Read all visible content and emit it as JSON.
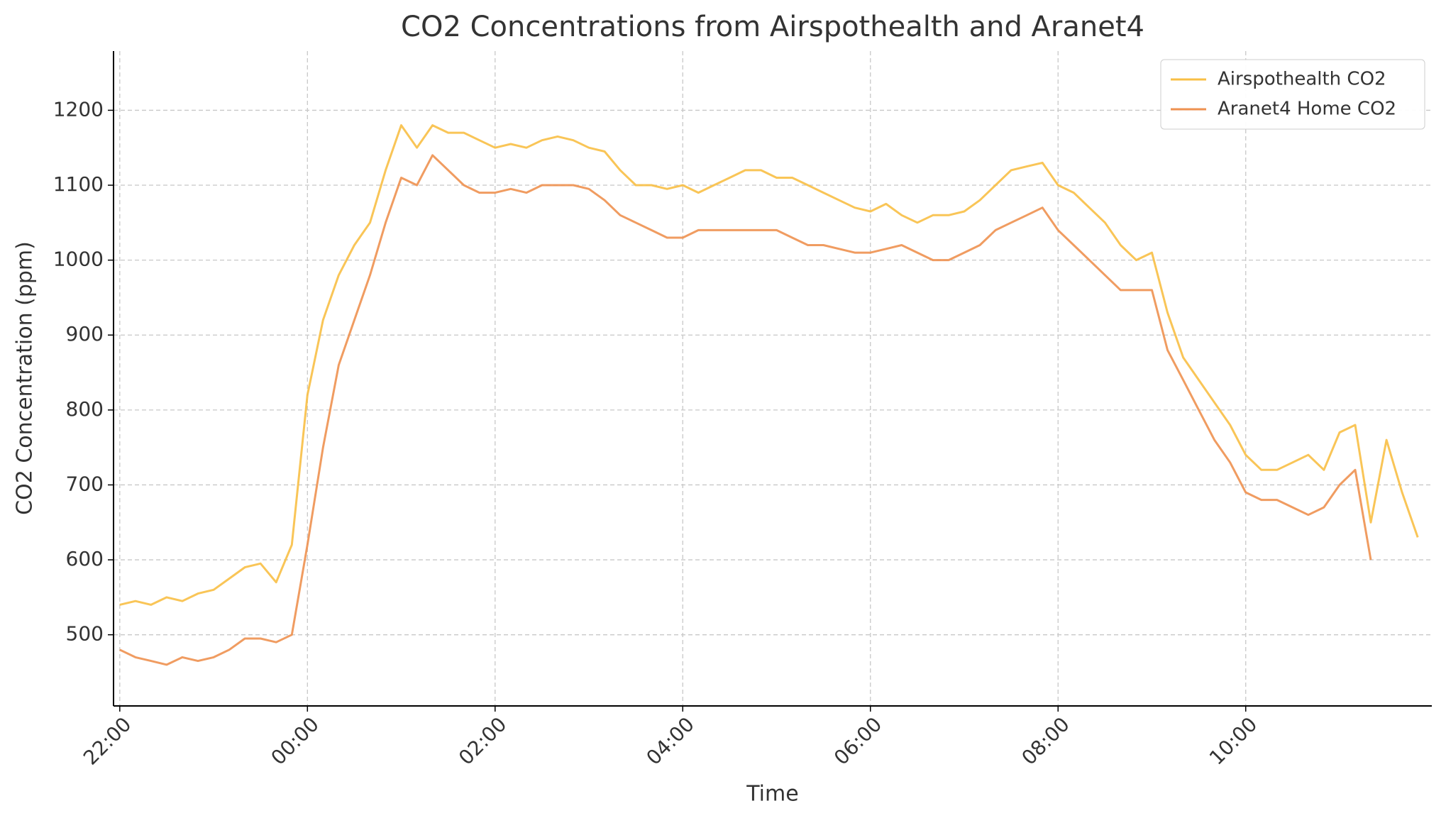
{
  "chart_data": {
    "type": "line",
    "title": "CO2 Concentrations from Airspothealth and Aranet4",
    "x_label": "Time",
    "y_label": "CO2 Concentration (ppm)",
    "x": [
      "22:00",
      "22:10",
      "22:20",
      "22:30",
      "22:40",
      "22:50",
      "23:00",
      "23:10",
      "23:20",
      "23:30",
      "23:40",
      "23:50",
      "00:00",
      "00:10",
      "00:20",
      "00:30",
      "00:40",
      "00:50",
      "01:00",
      "01:10",
      "01:20",
      "01:30",
      "01:40",
      "01:50",
      "02:00",
      "02:10",
      "02:20",
      "02:30",
      "02:40",
      "02:50",
      "03:00",
      "03:10",
      "03:20",
      "03:30",
      "03:40",
      "03:50",
      "04:00",
      "04:10",
      "04:20",
      "04:30",
      "04:40",
      "04:50",
      "05:00",
      "05:10",
      "05:20",
      "05:30",
      "05:40",
      "05:50",
      "06:00",
      "06:10",
      "06:20",
      "06:30",
      "06:40",
      "06:50",
      "07:00",
      "07:10",
      "07:20",
      "07:30",
      "07:40",
      "07:50",
      "08:00",
      "08:10",
      "08:20",
      "08:30",
      "08:40",
      "08:50",
      "09:00",
      "09:10",
      "09:20",
      "09:30",
      "09:40",
      "09:50",
      "10:00",
      "10:10",
      "10:20",
      "10:30",
      "10:40",
      "10:50",
      "11:00",
      "11:10",
      "11:20",
      "11:30",
      "11:40",
      "11:50"
    ],
    "series": [
      {
        "name": "Airspothealth CO2",
        "color": "#f8bf45",
        "values": [
          540,
          545,
          540,
          550,
          545,
          555,
          560,
          575,
          590,
          595,
          570,
          620,
          820,
          920,
          980,
          1020,
          1050,
          1120,
          1180,
          1150,
          1180,
          1170,
          1170,
          1160,
          1150,
          1155,
          1150,
          1160,
          1165,
          1160,
          1150,
          1145,
          1120,
          1100,
          1100,
          1095,
          1100,
          1090,
          1100,
          1110,
          1120,
          1120,
          1110,
          1110,
          1100,
          1090,
          1080,
          1070,
          1065,
          1075,
          1060,
          1050,
          1060,
          1060,
          1065,
          1080,
          1100,
          1120,
          1125,
          1130,
          1100,
          1090,
          1070,
          1050,
          1020,
          1000,
          1010,
          930,
          870,
          840,
          810,
          780,
          740,
          720,
          720,
          730,
          740,
          720,
          770,
          780,
          650,
          760,
          690,
          630
        ]
      },
      {
        "name": "Aranet4 Home CO2",
        "color": "#ee9150",
        "values": [
          480,
          470,
          465,
          460,
          470,
          465,
          470,
          480,
          495,
          495,
          490,
          500,
          620,
          750,
          860,
          920,
          980,
          1050,
          1110,
          1100,
          1140,
          1120,
          1100,
          1090,
          1090,
          1095,
          1090,
          1100,
          1100,
          1100,
          1095,
          1080,
          1060,
          1050,
          1040,
          1030,
          1030,
          1040,
          1040,
          1040,
          1040,
          1040,
          1040,
          1030,
          1020,
          1020,
          1015,
          1010,
          1010,
          1015,
          1020,
          1010,
          1000,
          1000,
          1010,
          1020,
          1040,
          1050,
          1060,
          1070,
          1040,
          1020,
          1000,
          980,
          960,
          960,
          960,
          880,
          840,
          800,
          760,
          730,
          690,
          680,
          680,
          670,
          660,
          670,
          700,
          720,
          600,
          null,
          null,
          null
        ]
      }
    ],
    "xlim": [
      "21:56",
      "11:59"
    ],
    "xticks": [
      "22:00",
      "00:00",
      "02:00",
      "04:00",
      "06:00",
      "08:00",
      "10:00"
    ],
    "ylim": [
      405,
      1279
    ],
    "yticks": [
      500,
      600,
      700,
      800,
      900,
      1000,
      1100,
      1200
    ],
    "grid": true,
    "legend": "upper right"
  }
}
